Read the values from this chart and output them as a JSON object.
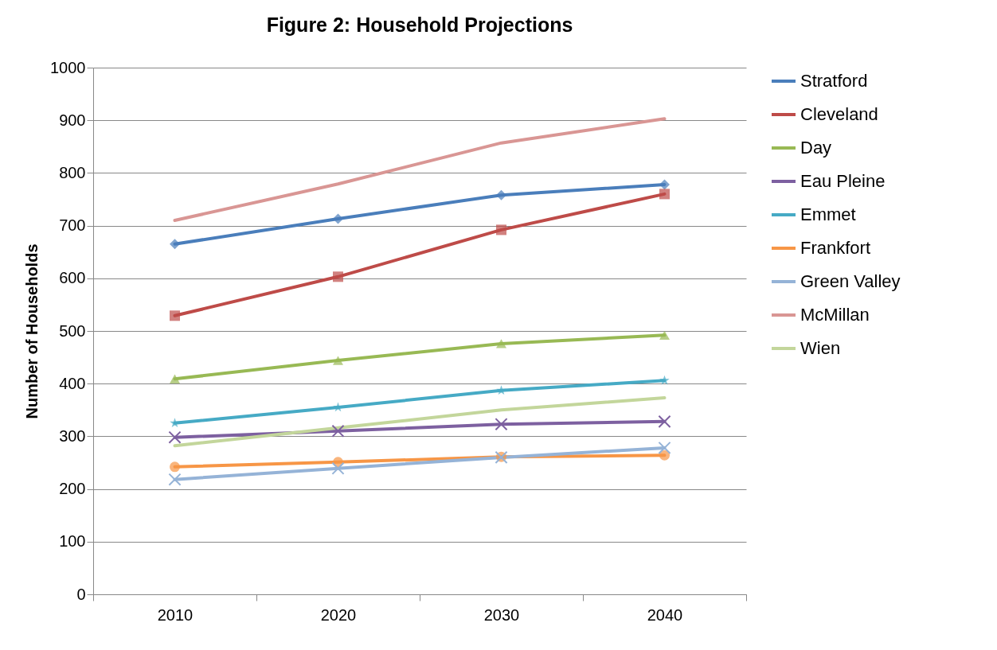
{
  "chart_data": {
    "type": "line",
    "title": "Figure 2:  Household Projections",
    "ylabel": "Number of Households",
    "categories": [
      "2010",
      "2020",
      "2030",
      "2040"
    ],
    "ylim": [
      0,
      1000
    ],
    "yticks": [
      0,
      100,
      200,
      300,
      400,
      500,
      600,
      700,
      800,
      900,
      {
        "value": 1000,
        "label": "1000"
      }
    ],
    "grid": "y",
    "legend": "right",
    "line_style": "solid",
    "series": [
      {
        "name": "Stratford",
        "color": "#4a7ebb",
        "marker": "diamond",
        "values": [
          665,
          713,
          758,
          778
        ]
      },
      {
        "name": "Cleveland",
        "color": "#be4b48",
        "marker": "square",
        "values": [
          529,
          603,
          692,
          760
        ]
      },
      {
        "name": "Day",
        "color": "#98b954",
        "marker": "triangle",
        "values": [
          409,
          444,
          476,
          492
        ]
      },
      {
        "name": "Eau Pleine",
        "color": "#7d60a0",
        "marker": "cross",
        "values": [
          298,
          310,
          323,
          328
        ]
      },
      {
        "name": "Emmet",
        "color": "#46aac5",
        "marker": "star",
        "values": [
          325,
          355,
          387,
          406
        ]
      },
      {
        "name": "Frankfort",
        "color": "#f79646",
        "marker": "circle",
        "values": [
          242,
          251,
          261,
          264
        ]
      },
      {
        "name": "Green Valley",
        "color": "#95b3d7",
        "marker": "cross",
        "values": [
          218,
          239,
          260,
          278
        ]
      },
      {
        "name": "McMillan",
        "color": "#d99694",
        "marker": "none",
        "values": [
          710,
          779,
          857,
          903
        ]
      },
      {
        "name": "Wien",
        "color": "#c3d69b",
        "marker": "none",
        "values": [
          282,
          316,
          350,
          373
        ]
      }
    ]
  }
}
